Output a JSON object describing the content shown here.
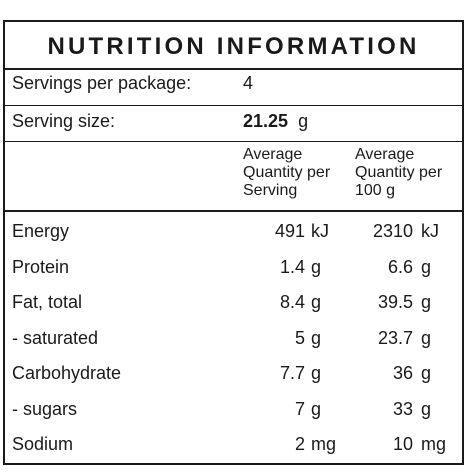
{
  "title": "NUTRITION INFORMATION",
  "servings": {
    "label": "Servings per package:",
    "value": "4"
  },
  "serving_size": {
    "label": "Serving size:",
    "value": "21.25",
    "unit": "g"
  },
  "headers": {
    "per_serving": [
      "Average",
      "Quantity per",
      "Serving"
    ],
    "per_100g": [
      "Average",
      "Quantity per",
      "100 g"
    ]
  },
  "rows": [
    {
      "label": "Energy",
      "serving": "491",
      "serving_unit": "kJ",
      "per100": "2310",
      "per100_unit": "kJ"
    },
    {
      "label": "Protein",
      "serving": "1.4",
      "serving_unit": "g",
      "per100": "6.6",
      "per100_unit": "g"
    },
    {
      "label": "Fat, total",
      "serving": "8.4",
      "serving_unit": "g",
      "per100": "39.5",
      "per100_unit": "g"
    },
    {
      "label": "- saturated",
      "serving": "5",
      "serving_unit": "g",
      "per100": "23.7",
      "per100_unit": "g"
    },
    {
      "label": "Carbohydrate",
      "serving": "7.7",
      "serving_unit": "g",
      "per100": "36",
      "per100_unit": "g"
    },
    {
      "label": "- sugars",
      "serving": "7",
      "serving_unit": "g",
      "per100": "33",
      "per100_unit": "g"
    },
    {
      "label": "Sodium",
      "serving": "2",
      "serving_unit": "mg",
      "per100": "10",
      "per100_unit": "mg"
    }
  ]
}
